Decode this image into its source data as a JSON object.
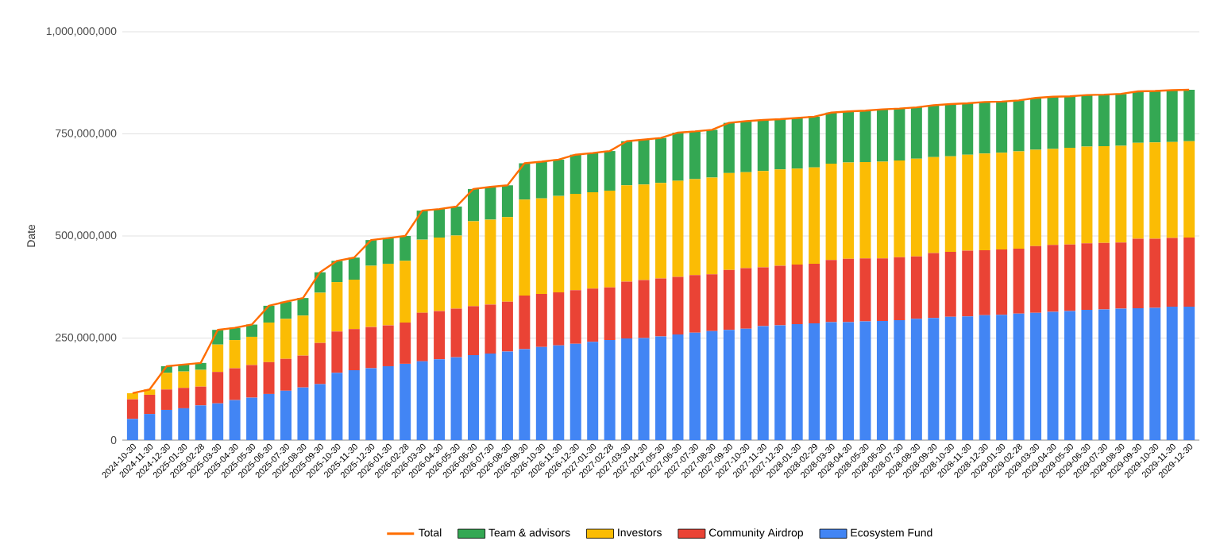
{
  "chart_data": {
    "type": "bar",
    "stacked": true,
    "ylabel": "Date",
    "categories": [
      "2024-10-30",
      "2024-11-30",
      "2024-12-30",
      "2025-01-30",
      "2025-02-28",
      "2025-03-30",
      "2025-04-30",
      "2025-05-30",
      "2025-06-30",
      "2025-07-30",
      "2025-08-30",
      "2025-09-30",
      "2025-10-30",
      "2025-11-30",
      "2025-12-30",
      "2026-01-30",
      "2026-02-28",
      "2026-03-30",
      "2026-04-30",
      "2026-05-30",
      "2026-06-30",
      "2026-07-30",
      "2026-08-30",
      "2026-09-30",
      "2026-10-30",
      "2026-11-30",
      "2026-12-30",
      "2027-01-30",
      "2027-02-28",
      "2027-03-30",
      "2027-04-30",
      "2027-05-30",
      "2027-06-30",
      "2027-07-30",
      "2027-08-30",
      "2027-09-30",
      "2027-10-30",
      "2027-11-30",
      "2027-12-30",
      "2028-01-30",
      "2028-02-29",
      "2028-03-30",
      "2028-04-30",
      "2028-05-30",
      "2028-06-30",
      "2028-07-30",
      "2028-08-30",
      "2028-09-30",
      "2028-10-30",
      "2028-11-30",
      "2028-12-30",
      "2029-01-30",
      "2029-02-28",
      "2029-03-30",
      "2029-04-30",
      "2029-05-30",
      "2029-06-30",
      "2029-07-30",
      "2029-08-30",
      "2029-09-30",
      "2029-10-30",
      "2029-11-30",
      "2029-12-30"
    ],
    "series": [
      {
        "name": "Ecosystem Fund",
        "color": "#4285f4",
        "values": [
          52000000,
          64000000,
          74000000,
          78000000,
          85000000,
          90000000,
          98000000,
          104000000,
          113000000,
          121000000,
          129000000,
          137000000,
          165000000,
          171000000,
          176000000,
          181000000,
          187000000,
          193000000,
          198000000,
          203000000,
          208000000,
          212000000,
          217000000,
          223000000,
          228000000,
          232000000,
          236000000,
          241000000,
          245000000,
          249000000,
          250000000,
          254000000,
          259000000,
          263000000,
          267000000,
          270000000,
          273000000,
          279000000,
          281000000,
          284000000,
          286000000,
          289000000,
          289000000,
          291000000,
          292000000,
          294000000,
          297000000,
          299000000,
          302000000,
          303000000,
          306000000,
          307000000,
          310000000,
          312000000,
          314000000,
          316000000,
          319000000,
          320000000,
          322000000,
          323000000,
          324000000,
          327000000,
          327000000
        ]
      },
      {
        "name": "Community Airdrop",
        "color": "#ea4335",
        "values": [
          48000000,
          47000000,
          50000000,
          50000000,
          46000000,
          77000000,
          78000000,
          80000000,
          78000000,
          78000000,
          78000000,
          101000000,
          101000000,
          101000000,
          101000000,
          100000000,
          101000000,
          119000000,
          118000000,
          119000000,
          120000000,
          120000000,
          122000000,
          131000000,
          130000000,
          130000000,
          131000000,
          130000000,
          129000000,
          139000000,
          142000000,
          142000000,
          141000000,
          141000000,
          139000000,
          147000000,
          148000000,
          144000000,
          146000000,
          146000000,
          146000000,
          152000000,
          155000000,
          154000000,
          153000000,
          154000000,
          153000000,
          159000000,
          159000000,
          161000000,
          159000000,
          160000000,
          159000000,
          163000000,
          164000000,
          163000000,
          163000000,
          163000000,
          162000000,
          170000000,
          169000000,
          168000000,
          169000000
        ]
      },
      {
        "name": "Investors",
        "color": "#fbbc04",
        "values": [
          15000000,
          13000000,
          41000000,
          40000000,
          41000000,
          67000000,
          69000000,
          69000000,
          97000000,
          98000000,
          98000000,
          123000000,
          121000000,
          121000000,
          150000000,
          151000000,
          151000000,
          179000000,
          180000000,
          179000000,
          208000000,
          208000000,
          207000000,
          235000000,
          234000000,
          236000000,
          236000000,
          236000000,
          237000000,
          236000000,
          234000000,
          234000000,
          235000000,
          235000000,
          237000000,
          237000000,
          235000000,
          236000000,
          236000000,
          235000000,
          236000000,
          236000000,
          236000000,
          236000000,
          237000000,
          237000000,
          239000000,
          235000000,
          234000000,
          235000000,
          237000000,
          237000000,
          238000000,
          236000000,
          235000000,
          237000000,
          237000000,
          237000000,
          237000000,
          235000000,
          236000000,
          235000000,
          236000000
        ]
      },
      {
        "name": "Team & advisors",
        "color": "#34a853",
        "values": [
          0,
          0,
          16000000,
          17000000,
          17000000,
          36000000,
          30000000,
          30000000,
          41000000,
          42000000,
          43000000,
          50000000,
          52000000,
          54000000,
          63000000,
          63000000,
          61000000,
          71000000,
          70000000,
          71000000,
          79000000,
          80000000,
          78000000,
          89000000,
          90000000,
          89000000,
          96000000,
          96000000,
          97000000,
          108000000,
          110000000,
          110000000,
          118000000,
          117000000,
          117000000,
          123000000,
          125000000,
          125000000,
          123000000,
          124000000,
          124000000,
          125000000,
          125000000,
          126000000,
          128000000,
          127000000,
          126000000,
          127000000,
          128000000,
          126000000,
          126000000,
          125000000,
          125000000,
          127000000,
          128000000,
          126000000,
          126000000,
          126000000,
          127000000,
          126000000,
          126000000,
          127000000,
          126000000
        ]
      },
      {
        "name": "Total",
        "type": "line",
        "color": "#ff6d01",
        "values": [
          115000000,
          124000000,
          181000000,
          185000000,
          189000000,
          270000000,
          275000000,
          283000000,
          329000000,
          339000000,
          348000000,
          411000000,
          439000000,
          447000000,
          490000000,
          495000000,
          500000000,
          562000000,
          566000000,
          572000000,
          615000000,
          620000000,
          624000000,
          678000000,
          682000000,
          687000000,
          699000000,
          703000000,
          708000000,
          732000000,
          736000000,
          740000000,
          753000000,
          756000000,
          760000000,
          777000000,
          781000000,
          784000000,
          786000000,
          789000000,
          792000000,
          802000000,
          805000000,
          807000000,
          810000000,
          812000000,
          815000000,
          820000000,
          823000000,
          825000000,
          828000000,
          829000000,
          832000000,
          838000000,
          841000000,
          842000000,
          845000000,
          846000000,
          848000000,
          854000000,
          855000000,
          857000000,
          858000000
        ]
      }
    ],
    "ylim": [
      0,
      1000000000
    ],
    "yticks": [
      {
        "value": 0,
        "label": "0"
      },
      {
        "value": 250000000,
        "label": "250,000,000"
      },
      {
        "value": 500000000,
        "label": "500,000,000"
      },
      {
        "value": 750000000,
        "label": "750,000,000"
      },
      {
        "value": 1000000000,
        "label": "1,000,000,000"
      }
    ],
    "grid": "y",
    "legend": "bottom"
  }
}
